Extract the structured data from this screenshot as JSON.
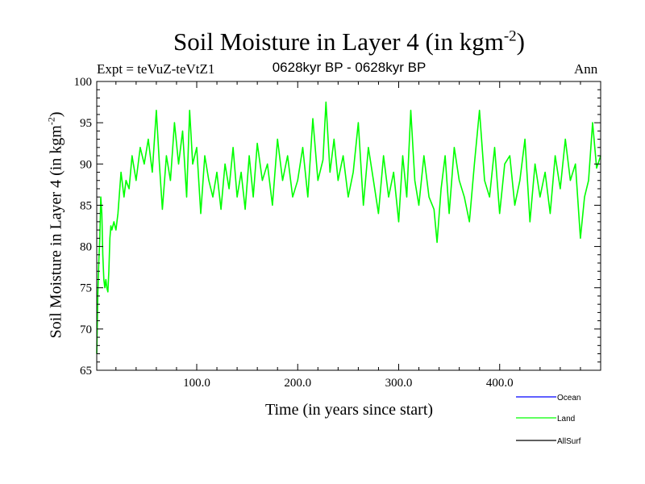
{
  "chart_data": {
    "type": "line",
    "title_main": "Soil Moisture in Layer 4 (in kgm",
    "title_sup": "-2",
    "title_end": ")",
    "subtitle": "0628kyr BP - 0628kyr BP",
    "expt_label": "Expt = teVuZ-teVtZ1",
    "season": "Ann",
    "ylabel_main": "Soil Moisture in Layer 4 (in kgm",
    "ylabel_sup": "-2",
    "ylabel_end": ")",
    "xlabel": "Time (in years since start)",
    "xlim": [
      1,
      500
    ],
    "ylim": [
      65,
      100
    ],
    "x_ticks": [
      100,
      200,
      300,
      400
    ],
    "x_tick_labels": [
      "100.0",
      "200.0",
      "300.0",
      "400.0"
    ],
    "y_ticks": [
      65,
      70,
      75,
      80,
      85,
      90,
      95,
      100
    ],
    "y_tick_labels": [
      "65",
      "70",
      "75",
      "80",
      "85",
      "90",
      "95",
      "100"
    ],
    "legend": [
      {
        "name": "Ocean",
        "color": "#0000ff"
      },
      {
        "name": "Land",
        "color": "#00ff00"
      },
      {
        "name": "AllSurf",
        "color": "#000000"
      }
    ],
    "series": [
      {
        "name": "Land",
        "color": "#00ff00",
        "x": [
          1,
          2,
          3,
          4,
          5,
          6,
          7,
          8,
          9,
          10,
          11,
          12,
          13,
          14,
          15,
          16,
          18,
          20,
          22,
          25,
          28,
          30,
          33,
          36,
          40,
          44,
          48,
          52,
          56,
          60,
          63,
          66,
          70,
          74,
          78,
          82,
          86,
          90,
          93,
          96,
          100,
          104,
          108,
          112,
          116,
          120,
          124,
          128,
          132,
          136,
          140,
          144,
          148,
          152,
          156,
          160,
          165,
          170,
          175,
          180,
          185,
          190,
          195,
          200,
          205,
          210,
          215,
          220,
          225,
          228,
          232,
          236,
          240,
          245,
          250,
          255,
          260,
          265,
          270,
          275,
          280,
          285,
          290,
          295,
          300,
          304,
          308,
          312,
          316,
          320,
          325,
          330,
          335,
          338,
          342,
          346,
          350,
          355,
          360,
          365,
          370,
          375,
          380,
          385,
          390,
          395,
          400,
          405,
          410,
          415,
          420,
          425,
          430,
          435,
          440,
          445,
          450,
          455,
          460,
          465,
          470,
          475,
          480,
          484,
          488,
          492,
          496,
          500
        ],
        "y": [
          67,
          74,
          78,
          81,
          86,
          84,
          79,
          76,
          75,
          76,
          75,
          74.5,
          77,
          81,
          82.5,
          82,
          83,
          82,
          84,
          89,
          86,
          88,
          87,
          91,
          88,
          92,
          90,
          93,
          89,
          96.5,
          90,
          84.5,
          91,
          88,
          95,
          90,
          94,
          86,
          96.5,
          90,
          92,
          84,
          91,
          88,
          86,
          89,
          84.5,
          90,
          87,
          92,
          86,
          89,
          84.5,
          91,
          86,
          92.5,
          88,
          90,
          85,
          93,
          88,
          91,
          86,
          88,
          92,
          86,
          95.5,
          88,
          90.5,
          97.5,
          89,
          93,
          88,
          91,
          86,
          89,
          95,
          85,
          92,
          88,
          84,
          91,
          86,
          89,
          83,
          91,
          86,
          96.5,
          88,
          85,
          91,
          86,
          84.5,
          80.5,
          87,
          91,
          84,
          92,
          88,
          86,
          83,
          90,
          96.5,
          88,
          86,
          92,
          84,
          90,
          91,
          85,
          88,
          93,
          83,
          90,
          86,
          89,
          84,
          91,
          87,
          93,
          88,
          90,
          81,
          86,
          88,
          95,
          89.5,
          91
        ]
      }
    ]
  }
}
